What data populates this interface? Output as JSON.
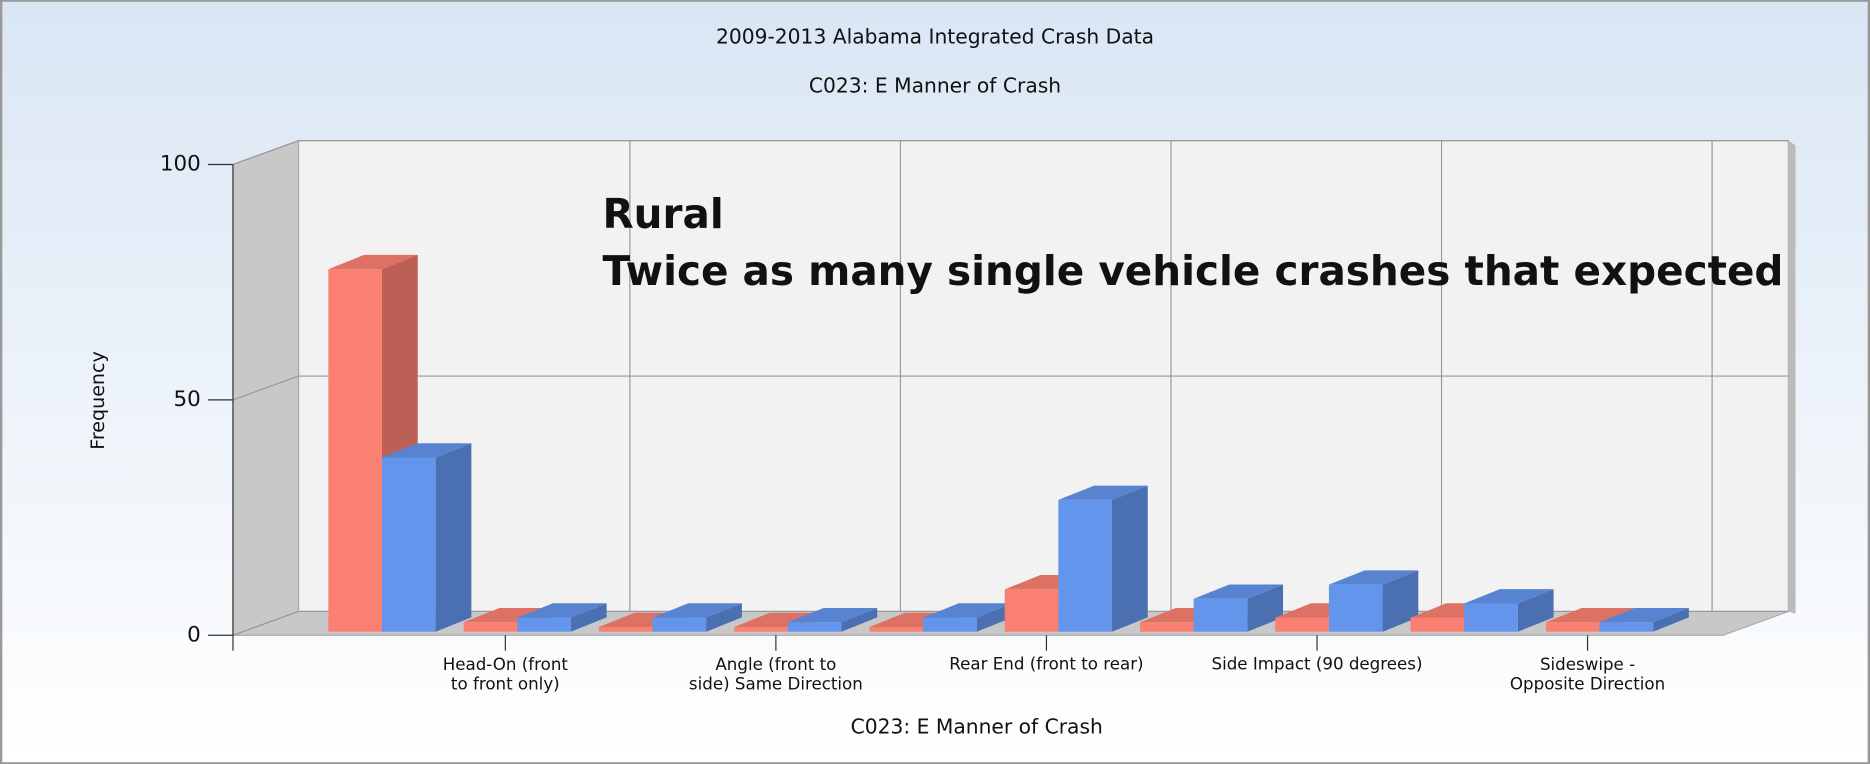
{
  "chart_data": {
    "type": "bar3d",
    "title": "2009-2013 Alabama Integrated Crash Data",
    "subtitle": "C023: E Manner of Crash",
    "x_label": "C023: E Manner of Crash",
    "y_label": "Frequency",
    "annotations": [
      "Rural",
      "Twice as many single vehicle crashes that expected"
    ],
    "categories": [
      null,
      "Head-On (front\nto front only)",
      null,
      "Angle (front to\nside) Same Direction",
      null,
      "Rear End (front to rear)",
      null,
      "Side Impact (90 degrees)",
      null,
      "Sideswipe -\nOpposite Direction"
    ],
    "series": [
      {
        "color": "#fa8072",
        "values": [
          77,
          2,
          1,
          1,
          1,
          9,
          2,
          3,
          3,
          2
        ]
      },
      {
        "color": "#6495ed",
        "values": [
          37,
          3,
          3,
          2,
          3,
          28,
          7,
          10,
          6,
          2
        ]
      }
    ],
    "ylim": [
      0,
      100
    ],
    "yticks": [
      0,
      50,
      100
    ],
    "grid": true
  }
}
